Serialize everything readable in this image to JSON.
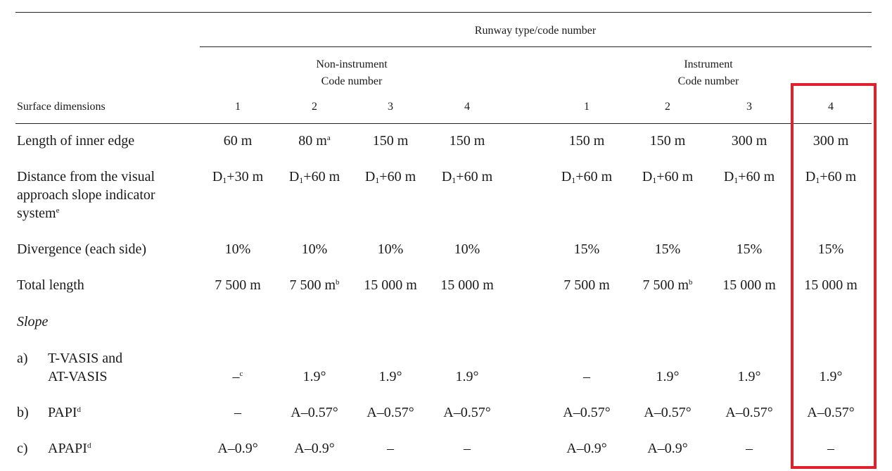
{
  "header": {
    "runway_type": "Runway type/code number",
    "noninstrument": {
      "title": "Non-instrument",
      "sub": "Code number"
    },
    "instrument": {
      "title": "Instrument",
      "sub": "Code number"
    },
    "surface_dimensions": "Surface dimensions",
    "codes": [
      "1",
      "2",
      "3",
      "4",
      "1",
      "2",
      "3",
      "4"
    ]
  },
  "rows": {
    "inner_edge": {
      "label": "Length of inner edge",
      "values": [
        "60 m",
        "80 m",
        "150 m",
        "150 m",
        "150 m",
        "150 m",
        "300 m",
        "300 m"
      ],
      "sup_col2": "a"
    },
    "distance": {
      "label_line1": "Distance from the visual",
      "label_line2": "approach slope indicator",
      "label_line3": "system",
      "label_sup": "e",
      "value_prefix": "D",
      "value_sub": "1",
      "values": [
        "+30 m",
        "+60 m",
        "+60 m",
        "+60 m",
        "+60 m",
        "+60 m",
        "+60 m",
        "+60 m"
      ]
    },
    "divergence": {
      "label": "Divergence (each side)",
      "values": [
        "10%",
        "10%",
        "10%",
        "10%",
        "15%",
        "15%",
        "15%",
        "15%"
      ]
    },
    "total_length": {
      "label": "Total length",
      "values": [
        "7 500 m",
        "7 500 m",
        "15 000 m",
        "15 000 m",
        "7 500 m",
        "7 500 m",
        "15 000 m",
        "15 000 m"
      ],
      "sup_b": "b"
    },
    "slope": {
      "label": "Slope"
    },
    "tvasis": {
      "letter": "a)",
      "label_line1": "T-VASIS and",
      "label_line2": "AT-VASIS",
      "values": [
        "–",
        "1.9°",
        "1.9°",
        "1.9°",
        "–",
        "1.9°",
        "1.9°",
        "1.9°"
      ],
      "sup_col1": "c"
    },
    "papi": {
      "letter": "b)",
      "label": "PAPI",
      "label_sup": "d",
      "values": [
        "–",
        "A–0.57°",
        "A–0.57°",
        "A–0.57°",
        "A–0.57°",
        "A–0.57°",
        "A–0.57°",
        "A–0.57°"
      ]
    },
    "apapi": {
      "letter": "c)",
      "label": "APAPI",
      "label_sup": "d",
      "values": [
        "A–0.9°",
        "A–0.9°",
        "–",
        "–",
        "A–0.9°",
        "A–0.9°",
        "–",
        "–"
      ]
    }
  },
  "highlight": {
    "color": "#e0212a"
  }
}
